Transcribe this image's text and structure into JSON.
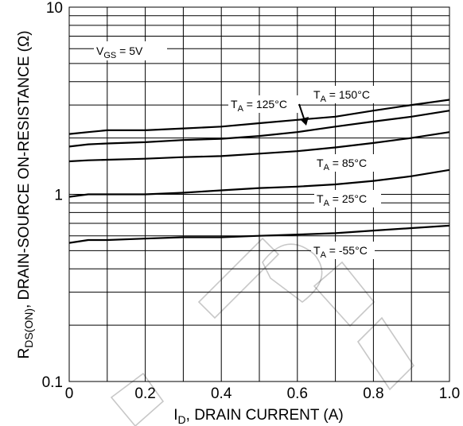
{
  "chart_data": {
    "type": "line",
    "xlabel_prefix": "I",
    "xlabel_sub": "D",
    "xlabel_rest": ", DRAIN CURRENT (A)",
    "ylabel_prefix": "R",
    "ylabel_sub": "DS(ON)",
    "ylabel_rest": ",  DRAIN-SOURCE ON-RESISTANCE (Ω)",
    "x_ticks": [
      "0",
      "0.2",
      "0.4",
      "0.6",
      "0.8",
      "1.0"
    ],
    "y_ticks": [
      "0.1",
      "1",
      "10"
    ],
    "xlim": [
      0,
      1.0
    ],
    "ylim": [
      0.1,
      10
    ],
    "y_scale": "log",
    "grid": true,
    "condition": {
      "prefix": "V",
      "sub": "GS",
      "rest": " = 5V"
    },
    "series": [
      {
        "name": "TA = 150°C",
        "label_prefix": "T",
        "label_sub": "A",
        "label_rest": " = 150°C",
        "x": [
          0,
          0.05,
          0.1,
          0.2,
          0.3,
          0.4,
          0.5,
          0.6,
          0.7,
          0.8,
          0.9,
          1.0
        ],
        "y": [
          2.1,
          2.15,
          2.2,
          2.2,
          2.25,
          2.3,
          2.4,
          2.5,
          2.6,
          2.8,
          3.0,
          3.2
        ]
      },
      {
        "name": "TA = 125°C",
        "label_prefix": "T",
        "label_sub": "A",
        "label_rest": " = 125°C",
        "x": [
          0,
          0.05,
          0.1,
          0.2,
          0.3,
          0.4,
          0.5,
          0.6,
          0.7,
          0.8,
          0.9,
          1.0
        ],
        "y": [
          1.8,
          1.85,
          1.87,
          1.9,
          1.95,
          1.98,
          2.05,
          2.15,
          2.3,
          2.45,
          2.6,
          2.8
        ]
      },
      {
        "name": "TA = 85°C",
        "label_prefix": "T",
        "label_sub": "A",
        "label_rest": " = 85°C",
        "x": [
          0,
          0.05,
          0.1,
          0.2,
          0.3,
          0.4,
          0.5,
          0.6,
          0.7,
          0.8,
          0.9,
          1.0
        ],
        "y": [
          1.5,
          1.52,
          1.53,
          1.55,
          1.58,
          1.6,
          1.65,
          1.7,
          1.78,
          1.88,
          2.0,
          2.15
        ]
      },
      {
        "name": "TA = 25°C",
        "label_prefix": "T",
        "label_sub": "A",
        "label_rest": " = 25°C",
        "x": [
          0,
          0.05,
          0.1,
          0.2,
          0.3,
          0.4,
          0.5,
          0.6,
          0.7,
          0.8,
          0.9,
          1.0
        ],
        "y": [
          0.97,
          1.0,
          1.0,
          1.0,
          1.02,
          1.05,
          1.08,
          1.1,
          1.13,
          1.18,
          1.25,
          1.35
        ]
      },
      {
        "name": "TA = -55°C",
        "label_prefix": "T",
        "label_sub": "A",
        "label_rest": " = -55°C",
        "x": [
          0,
          0.05,
          0.1,
          0.2,
          0.3,
          0.4,
          0.5,
          0.6,
          0.7,
          0.8,
          0.9,
          1.0
        ],
        "y": [
          0.55,
          0.57,
          0.57,
          0.58,
          0.59,
          0.59,
          0.6,
          0.61,
          0.62,
          0.64,
          0.66,
          0.68
        ]
      }
    ]
  }
}
